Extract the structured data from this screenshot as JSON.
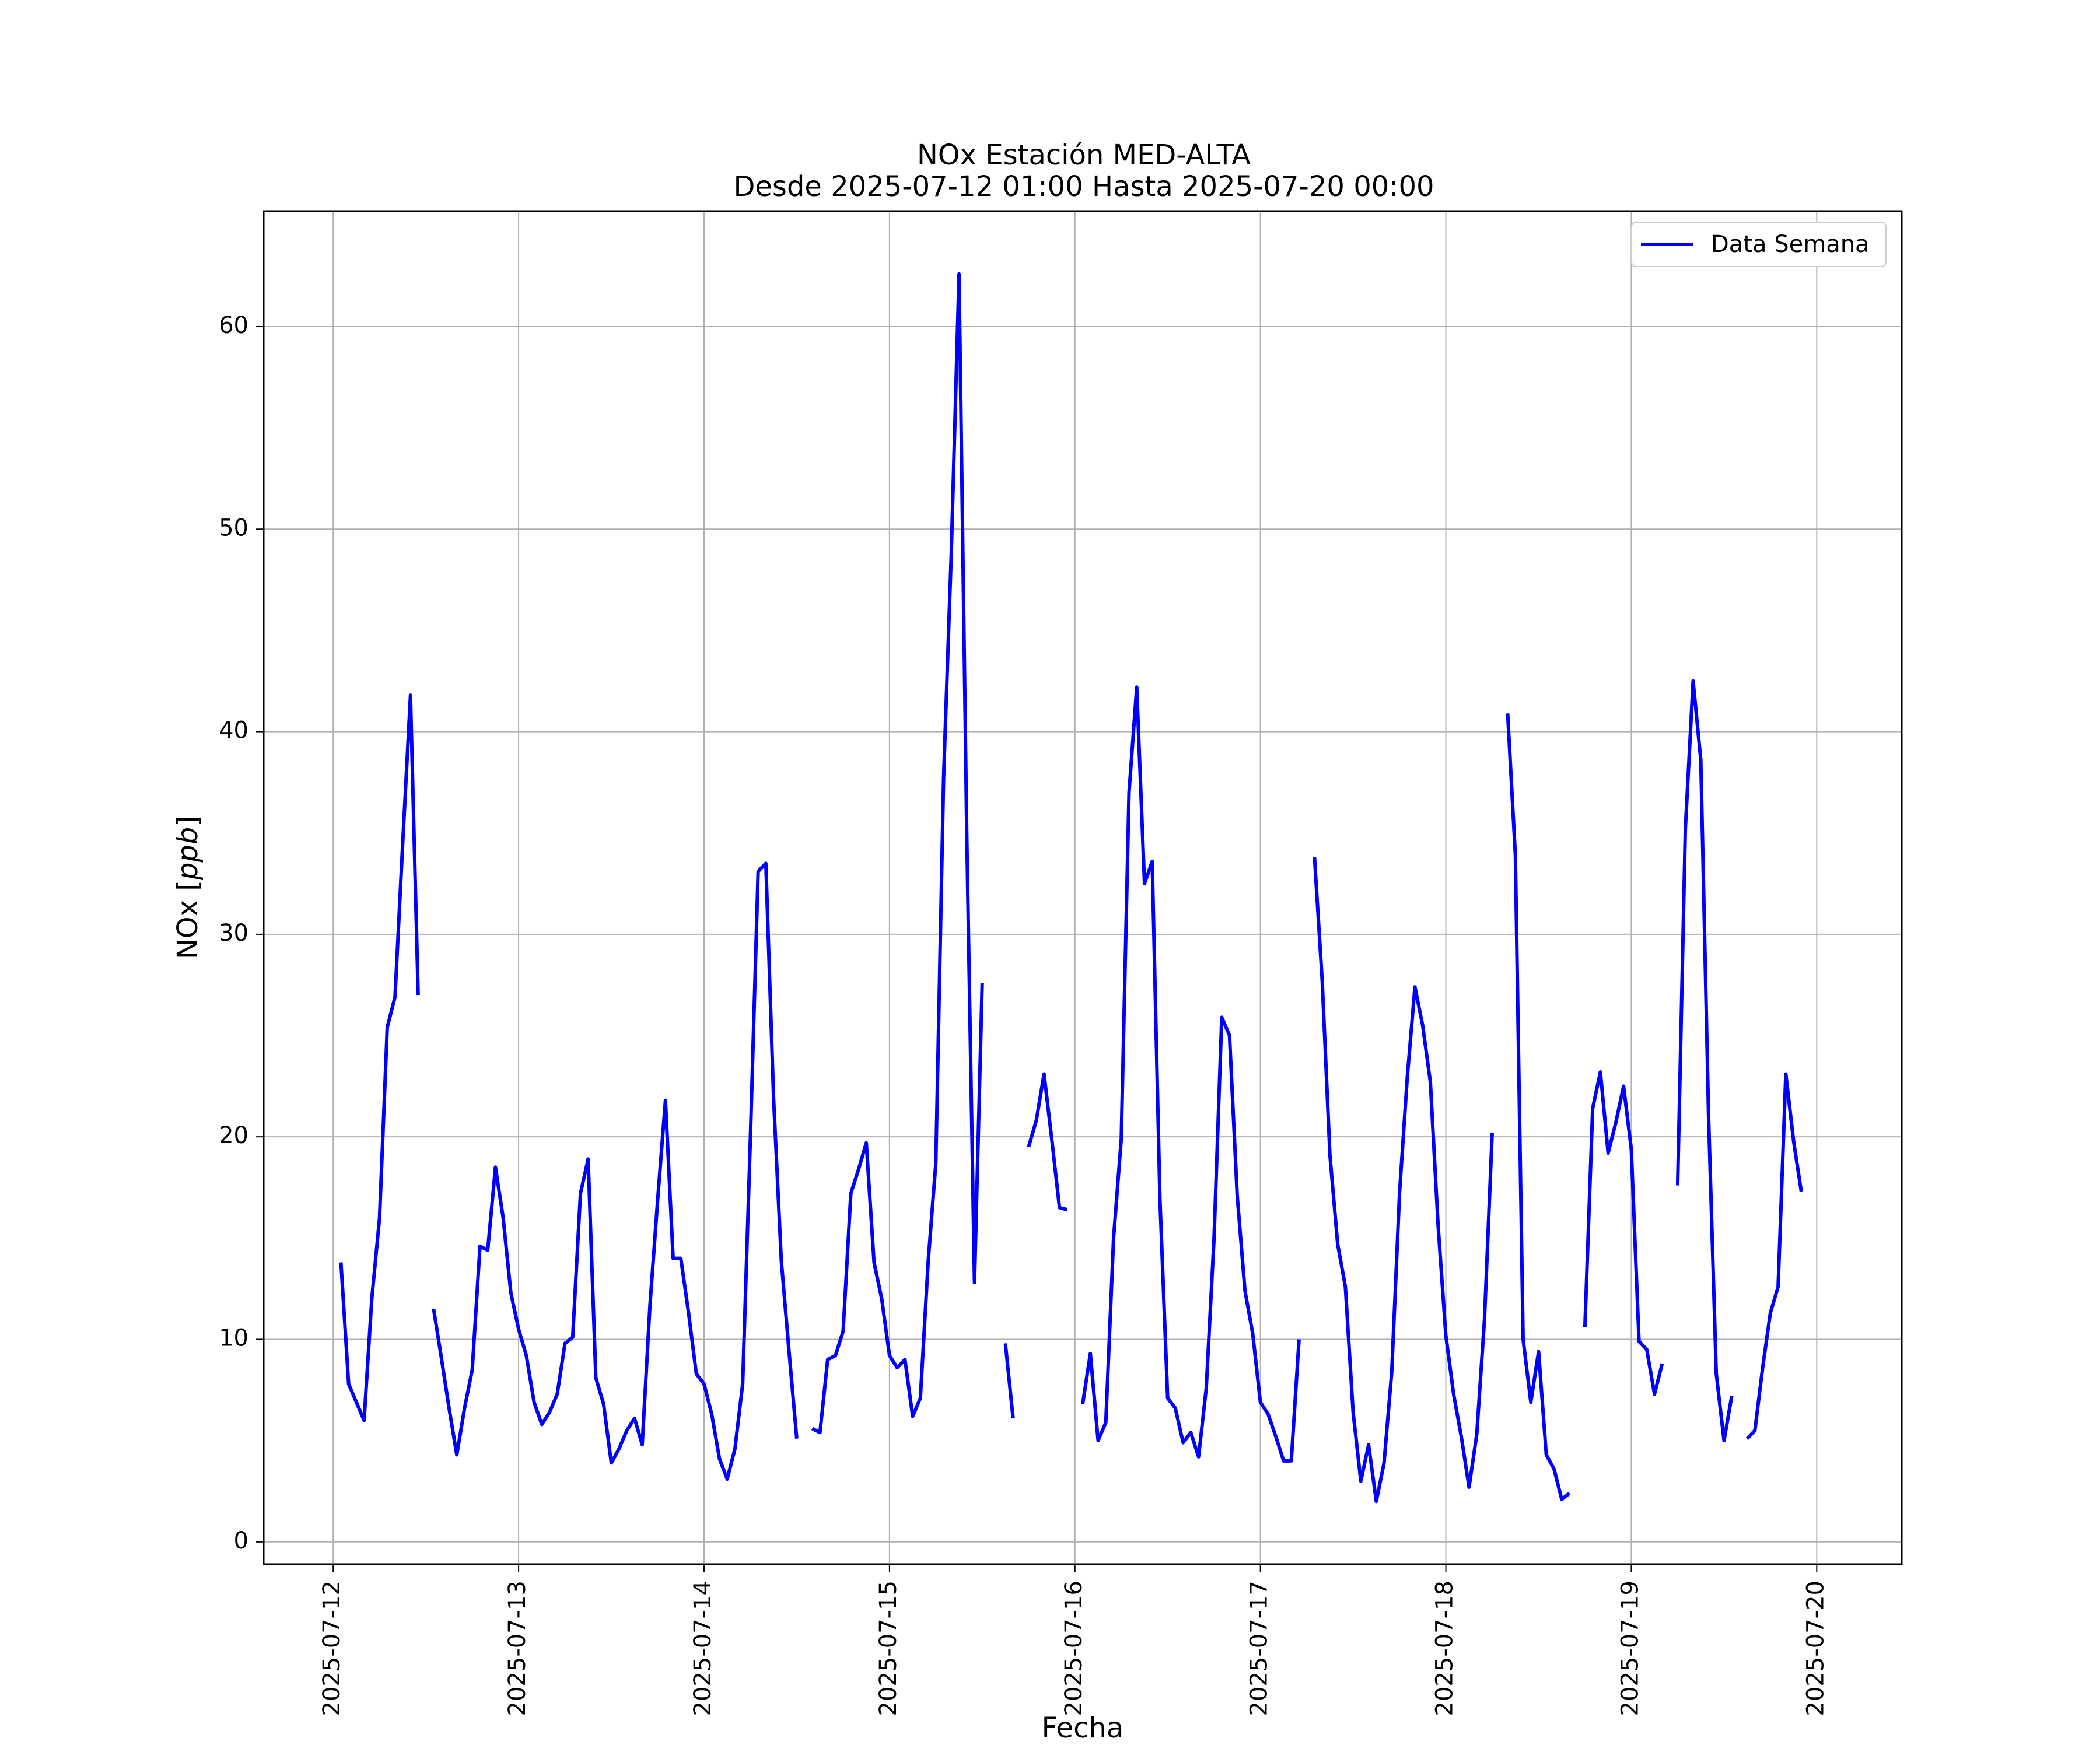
{
  "chart_data": {
    "type": "line",
    "title": "NOx Estación MED-ALTA",
    "subtitle": "Desde 2025-07-12 01:00 Hasta 2025-07-20 00:00",
    "xlabel": "Fecha",
    "ylabel": "NOx [ppb]",
    "ylabel_prefix": "NOx [",
    "ylabel_unit": "ppb",
    "ylabel_suffix": "]",
    "xlim": [
      "2025-07-11 15:00",
      "2025-07-20 11:00"
    ],
    "ylim": [
      -1.1,
      65.7
    ],
    "x_ticks": [
      "2025-07-12",
      "2025-07-13",
      "2025-07-14",
      "2025-07-15",
      "2025-07-16",
      "2025-07-17",
      "2025-07-18",
      "2025-07-19",
      "2025-07-20"
    ],
    "y_ticks": [
      0,
      10,
      20,
      30,
      40,
      50,
      60
    ],
    "y_tick_labels": [
      "0",
      "10",
      "20",
      "30",
      "40",
      "50",
      "60"
    ],
    "grid": true,
    "legend_position": "top-right",
    "series": [
      {
        "name": "Data Semana",
        "color": "#0000ff",
        "segments": [
          [
            [
              "2025-07-12 01:00",
              13.8
            ],
            [
              "2025-07-12 02:00",
              7.8
            ],
            [
              "2025-07-12 03:00",
              6.9
            ],
            [
              "2025-07-12 04:00",
              6.0
            ],
            [
              "2025-07-12 05:00",
              12.0
            ],
            [
              "2025-07-12 06:00",
              16.0
            ],
            [
              "2025-07-12 07:00",
              25.4
            ],
            [
              "2025-07-12 08:00",
              26.9
            ],
            [
              "2025-07-12 09:00",
              34.5
            ],
            [
              "2025-07-12 10:00",
              41.8
            ],
            [
              "2025-07-12 11:00",
              27.0
            ]
          ],
          [
            [
              "2025-07-12 13:00",
              11.5
            ],
            [
              "2025-07-12 14:00",
              9.1
            ],
            [
              "2025-07-12 15:00",
              6.6
            ],
            [
              "2025-07-12 16:00",
              4.3
            ],
            [
              "2025-07-12 17:00",
              6.6
            ],
            [
              "2025-07-12 18:00",
              8.5
            ],
            [
              "2025-07-12 19:00",
              14.6
            ],
            [
              "2025-07-12 20:00",
              14.4
            ],
            [
              "2025-07-12 21:00",
              18.5
            ],
            [
              "2025-07-12 22:00",
              16.0
            ],
            [
              "2025-07-12 23:00",
              12.3
            ],
            [
              "2025-07-13 00:00",
              10.5
            ],
            [
              "2025-07-13 01:00",
              9.2
            ],
            [
              "2025-07-13 02:00",
              6.9
            ],
            [
              "2025-07-13 03:00",
              5.8
            ],
            [
              "2025-07-13 04:00",
              6.4
            ],
            [
              "2025-07-13 05:00",
              7.3
            ],
            [
              "2025-07-13 06:00",
              9.8
            ],
            [
              "2025-07-13 07:00",
              10.1
            ],
            [
              "2025-07-13 08:00",
              17.2
            ],
            [
              "2025-07-13 09:00",
              18.9
            ],
            [
              "2025-07-13 10:00",
              8.1
            ],
            [
              "2025-07-13 11:00",
              6.8
            ],
            [
              "2025-07-13 12:00",
              3.9
            ],
            [
              "2025-07-13 13:00",
              4.6
            ],
            [
              "2025-07-13 14:00",
              5.5
            ],
            [
              "2025-07-13 15:00",
              6.1
            ],
            [
              "2025-07-13 16:00",
              4.8
            ],
            [
              "2025-07-13 17:00",
              11.7
            ],
            [
              "2025-07-13 18:00",
              16.9
            ],
            [
              "2025-07-13 19:00",
              21.8
            ],
            [
              "2025-07-13 20:00",
              14.0
            ],
            [
              "2025-07-13 21:00",
              14.0
            ],
            [
              "2025-07-13 22:00",
              11.3
            ],
            [
              "2025-07-13 23:00",
              8.3
            ],
            [
              "2025-07-14 00:00",
              7.8
            ],
            [
              "2025-07-14 01:00",
              6.3
            ],
            [
              "2025-07-14 02:00",
              4.1
            ],
            [
              "2025-07-14 03:00",
              3.1
            ],
            [
              "2025-07-14 04:00",
              4.6
            ],
            [
              "2025-07-14 05:00",
              7.8
            ],
            [
              "2025-07-14 06:00",
              20.0
            ],
            [
              "2025-07-14 07:00",
              33.1
            ],
            [
              "2025-07-14 08:00",
              33.5
            ],
            [
              "2025-07-14 09:00",
              21.9
            ],
            [
              "2025-07-14 10:00",
              13.9
            ],
            [
              "2025-07-14 11:00",
              9.4
            ],
            [
              "2025-07-14 12:00",
              5.1
            ]
          ],
          [
            [
              "2025-07-14 14:00",
              5.6
            ],
            [
              "2025-07-14 15:00",
              5.4
            ],
            [
              "2025-07-14 16:00",
              9.0
            ],
            [
              "2025-07-14 17:00",
              9.2
            ],
            [
              "2025-07-14 18:00",
              10.4
            ],
            [
              "2025-07-14 19:00",
              17.2
            ],
            [
              "2025-07-14 20:00",
              18.4
            ],
            [
              "2025-07-14 21:00",
              19.7
            ],
            [
              "2025-07-14 22:00",
              13.8
            ],
            [
              "2025-07-14 23:00",
              12.0
            ],
            [
              "2025-07-15 00:00",
              9.2
            ],
            [
              "2025-07-15 01:00",
              8.6
            ],
            [
              "2025-07-15 02:00",
              9.0
            ],
            [
              "2025-07-15 03:00",
              6.2
            ],
            [
              "2025-07-15 04:00",
              7.1
            ],
            [
              "2025-07-15 05:00",
              13.8
            ],
            [
              "2025-07-15 06:00",
              18.7
            ],
            [
              "2025-07-15 07:00",
              37.7
            ],
            [
              "2025-07-15 08:00",
              48.8
            ],
            [
              "2025-07-15 09:00",
              62.6
            ],
            [
              "2025-07-15 10:00",
              35.0
            ],
            [
              "2025-07-15 11:00",
              12.8
            ],
            [
              "2025-07-15 12:00",
              27.6
            ]
          ],
          [
            [
              "2025-07-15 15:00",
              9.8
            ],
            [
              "2025-07-15 16:00",
              6.1
            ]
          ],
          [
            [
              "2025-07-15 18:00",
              19.5
            ],
            [
              "2025-07-15 19:00",
              20.8
            ],
            [
              "2025-07-15 20:00",
              23.1
            ],
            [
              "2025-07-15 21:00",
              19.9
            ],
            [
              "2025-07-15 22:00",
              16.5
            ],
            [
              "2025-07-15 23:00",
              16.4
            ]
          ],
          [
            [
              "2025-07-16 01:00",
              6.8
            ],
            [
              "2025-07-16 02:00",
              9.3
            ],
            [
              "2025-07-16 03:00",
              5.0
            ],
            [
              "2025-07-16 04:00",
              5.9
            ],
            [
              "2025-07-16 05:00",
              15.0
            ],
            [
              "2025-07-16 06:00",
              19.9
            ],
            [
              "2025-07-16 07:00",
              37.0
            ],
            [
              "2025-07-16 08:00",
              42.2
            ],
            [
              "2025-07-16 09:00",
              32.5
            ],
            [
              "2025-07-16 10:00",
              33.6
            ],
            [
              "2025-07-16 11:00",
              16.9
            ],
            [
              "2025-07-16 12:00",
              7.1
            ],
            [
              "2025-07-16 13:00",
              6.6
            ],
            [
              "2025-07-16 14:00",
              4.9
            ],
            [
              "2025-07-16 15:00",
              5.4
            ],
            [
              "2025-07-16 16:00",
              4.2
            ],
            [
              "2025-07-16 17:00",
              7.6
            ],
            [
              "2025-07-16 18:00",
              15.0
            ],
            [
              "2025-07-16 19:00",
              25.9
            ],
            [
              "2025-07-16 20:00",
              25.0
            ],
            [
              "2025-07-16 21:00",
              17.1
            ],
            [
              "2025-07-16 22:00",
              12.4
            ],
            [
              "2025-07-16 23:00",
              10.3
            ],
            [
              "2025-07-17 00:00",
              6.9
            ],
            [
              "2025-07-17 01:00",
              6.3
            ],
            [
              "2025-07-17 02:00",
              5.2
            ],
            [
              "2025-07-17 03:00",
              4.0
            ],
            [
              "2025-07-17 04:00",
              4.0
            ],
            [
              "2025-07-17 05:00",
              10.0
            ]
          ],
          [
            [
              "2025-07-17 07:00",
              33.8
            ],
            [
              "2025-07-17 08:00",
              27.7
            ],
            [
              "2025-07-17 09:00",
              19.1
            ],
            [
              "2025-07-17 10:00",
              14.7
            ],
            [
              "2025-07-17 11:00",
              12.6
            ],
            [
              "2025-07-17 12:00",
              6.4
            ],
            [
              "2025-07-17 13:00",
              3.0
            ],
            [
              "2025-07-17 14:00",
              4.8
            ],
            [
              "2025-07-17 15:00",
              2.0
            ],
            [
              "2025-07-17 16:00",
              3.9
            ],
            [
              "2025-07-17 17:00",
              8.4
            ],
            [
              "2025-07-17 18:00",
              17.2
            ],
            [
              "2025-07-17 19:00",
              22.9
            ],
            [
              "2025-07-17 20:00",
              27.4
            ],
            [
              "2025-07-17 21:00",
              25.5
            ],
            [
              "2025-07-17 22:00",
              22.7
            ],
            [
              "2025-07-17 23:00",
              15.6
            ],
            [
              "2025-07-18 00:00",
              10.2
            ],
            [
              "2025-07-18 01:00",
              7.3
            ],
            [
              "2025-07-18 02:00",
              5.2
            ],
            [
              "2025-07-18 03:00",
              2.7
            ],
            [
              "2025-07-18 04:00",
              5.3
            ],
            [
              "2025-07-18 05:00",
              11.0
            ],
            [
              "2025-07-18 06:00",
              20.2
            ]
          ],
          [
            [
              "2025-07-18 08:00",
              40.9
            ],
            [
              "2025-07-18 09:00",
              33.9
            ],
            [
              "2025-07-18 10:00",
              10.0
            ],
            [
              "2025-07-18 11:00",
              6.9
            ],
            [
              "2025-07-18 12:00",
              9.4
            ],
            [
              "2025-07-18 13:00",
              4.3
            ],
            [
              "2025-07-18 14:00",
              3.6
            ],
            [
              "2025-07-18 15:00",
              2.1
            ],
            [
              "2025-07-18 16:00",
              2.4
            ]
          ],
          [
            [
              "2025-07-18 18:00",
              10.6
            ],
            [
              "2025-07-18 19:00",
              21.4
            ],
            [
              "2025-07-18 20:00",
              23.2
            ],
            [
              "2025-07-18 21:00",
              19.2
            ],
            [
              "2025-07-18 22:00",
              20.7
            ],
            [
              "2025-07-18 23:00",
              22.5
            ],
            [
              "2025-07-19 00:00",
              19.4
            ],
            [
              "2025-07-19 01:00",
              9.9
            ],
            [
              "2025-07-19 02:00",
              9.5
            ],
            [
              "2025-07-19 03:00",
              7.3
            ],
            [
              "2025-07-19 04:00",
              8.8
            ]
          ],
          [
            [
              "2025-07-19 06:00",
              17.6
            ],
            [
              "2025-07-19 07:00",
              35.2
            ],
            [
              "2025-07-19 08:00",
              42.5
            ],
            [
              "2025-07-19 09:00",
              38.6
            ],
            [
              "2025-07-19 10:00",
              21.0
            ],
            [
              "2025-07-19 11:00",
              8.3
            ],
            [
              "2025-07-19 12:00",
              5.0
            ],
            [
              "2025-07-19 13:00",
              7.2
            ]
          ],
          [
            [
              "2025-07-19 15:00",
              5.1
            ],
            [
              "2025-07-19 16:00",
              5.5
            ],
            [
              "2025-07-19 17:00",
              8.6
            ],
            [
              "2025-07-19 18:00",
              11.3
            ],
            [
              "2025-07-19 19:00",
              12.6
            ],
            [
              "2025-07-19 20:00",
              23.1
            ],
            [
              "2025-07-19 21:00",
              19.8
            ],
            [
              "2025-07-19 22:00",
              17.3
            ]
          ]
        ]
      }
    ]
  }
}
